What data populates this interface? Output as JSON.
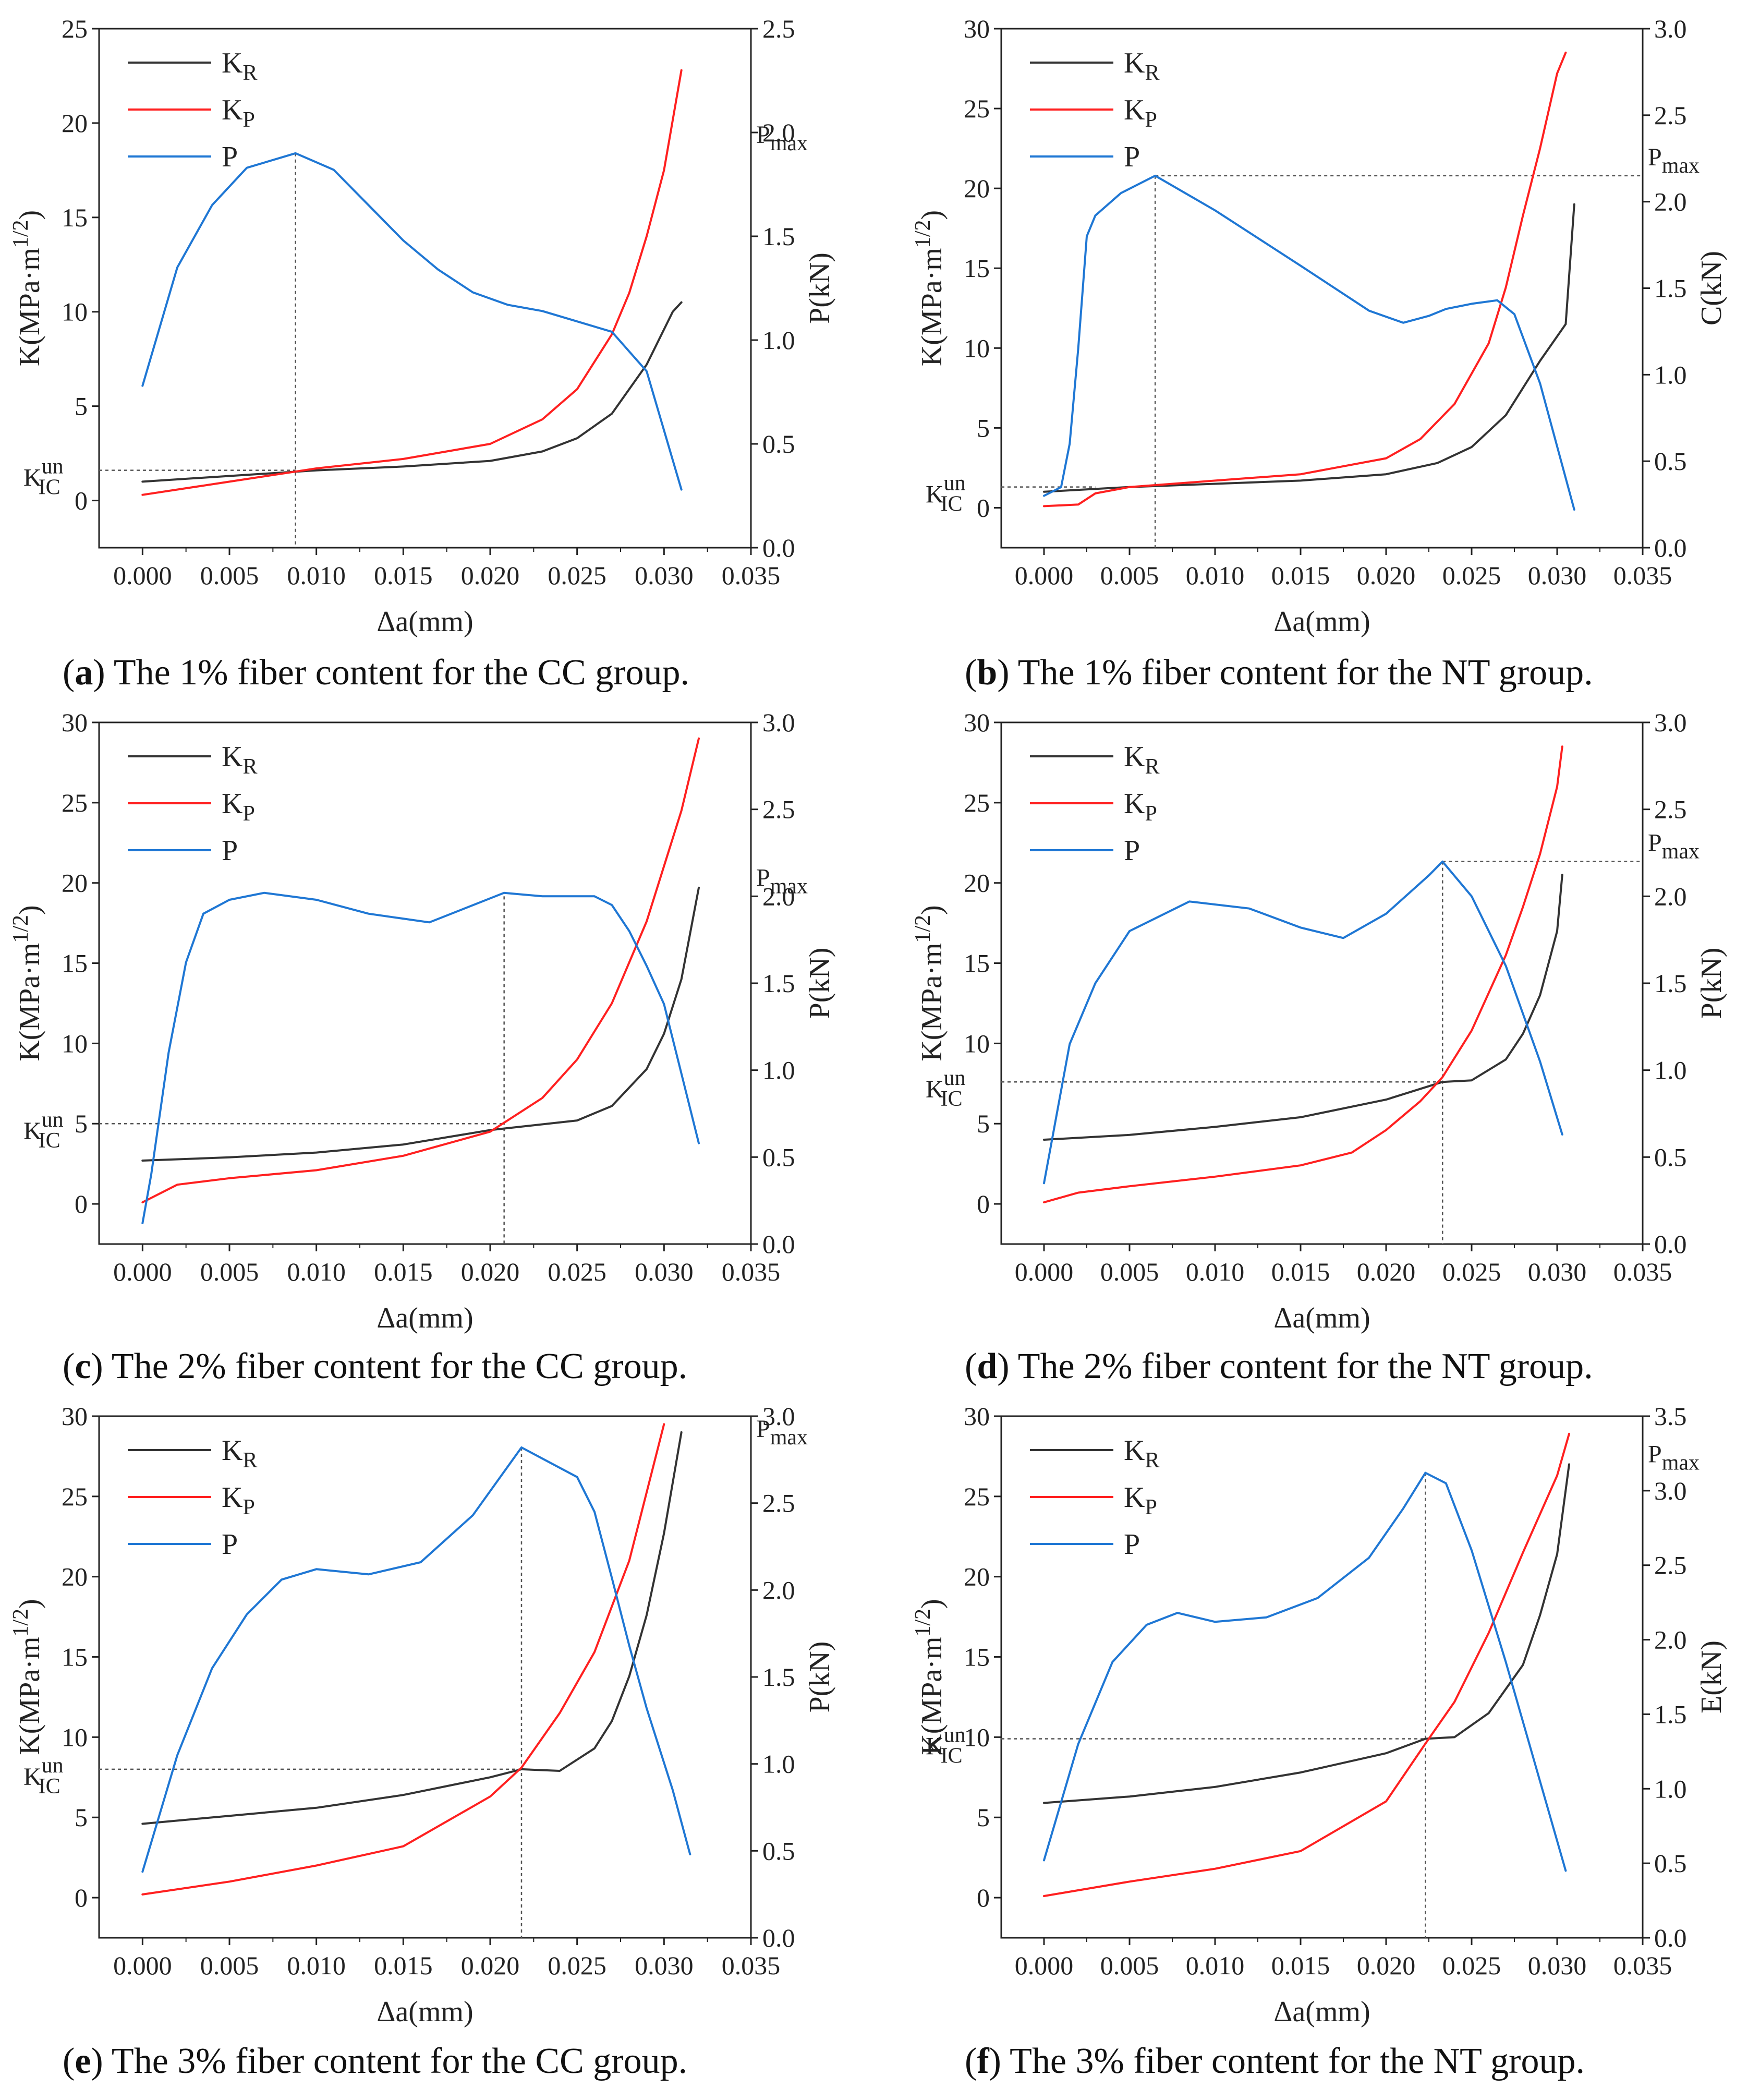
{
  "colors": {
    "KR": "#333333",
    "KP": "#ff2020",
    "P": "#1f77d4",
    "axis": "#222222",
    "guide": "#555555"
  },
  "legend": {
    "kr": "K",
    "kr_sub": "R",
    "kp": "K",
    "kp_sub": "P",
    "p": "P"
  },
  "kic_label": {
    "main": "K",
    "sub": "IC",
    "sup": "un"
  },
  "pmax_label": {
    "main": "P",
    "sub": "max"
  },
  "x_tick_labels": [
    "0.000",
    "0.005",
    "0.010",
    "0.015",
    "0.020",
    "0.025",
    "0.030",
    "0.035"
  ],
  "panels": [
    {
      "id": "a",
      "caption": {
        "letter": "a",
        "text": "The 1% fiber content for the CC group."
      },
      "chart_data": {
        "type": "line",
        "xlabel": "Δa(mm)",
        "ylabel": "K(MPa·m1/2)",
        "y2label": "P(kN)",
        "xlim": [
          -0.0025,
          0.035
        ],
        "ylim": [
          -2.5,
          25
        ],
        "y2lim": [
          0,
          2.5
        ],
        "yticks": [
          "0",
          "5",
          "10",
          "15",
          "20",
          "25"
        ],
        "y2ticks": [
          "0.0",
          "0.5",
          "1.0",
          "1.5",
          "2.0",
          "2.5"
        ],
        "kic": 1.6,
        "kic_x": 0.0088,
        "pmax_x": 0.0088,
        "pmax": 1.9,
        "pmax_line": "none",
        "series": [
          {
            "name": "KR",
            "x": [
              0,
              0.005,
              0.01,
              0.015,
              0.02,
              0.023,
              0.025,
              0.027,
              0.029,
              0.0305,
              0.031
            ],
            "y": [
              1.0,
              1.3,
              1.6,
              1.8,
              2.1,
              2.6,
              3.3,
              4.6,
              7.2,
              10.0,
              10.5
            ]
          },
          {
            "name": "KP",
            "x": [
              0,
              0.005,
              0.01,
              0.015,
              0.02,
              0.023,
              0.025,
              0.027,
              0.028,
              0.029,
              0.03,
              0.031
            ],
            "y": [
              0.3,
              1.0,
              1.7,
              2.2,
              3.0,
              4.3,
              5.9,
              8.8,
              11,
              14,
              17.5,
              22.8
            ]
          },
          {
            "name": "P",
            "x": [
              0,
              0.002,
              0.004,
              0.006,
              0.0088,
              0.011,
              0.013,
              0.015,
              0.017,
              0.019,
              0.021,
              0.023,
              0.025,
              0.027,
              0.029,
              0.031
            ],
            "y": [
              0.78,
              1.35,
              1.65,
              1.83,
              1.9,
              1.82,
              1.65,
              1.48,
              1.34,
              1.23,
              1.17,
              1.14,
              1.09,
              1.04,
              0.85,
              0.28
            ]
          }
        ]
      }
    },
    {
      "id": "b",
      "caption": {
        "letter": "b",
        "text": "The 1% fiber content for the NT group."
      },
      "chart_data": {
        "type": "line",
        "xlabel": "Δa(mm)",
        "ylabel": "K(MPa·m1/2)",
        "y2label": "C(kN)",
        "xlim": [
          -0.0025,
          0.035
        ],
        "ylim": [
          -2.5,
          30
        ],
        "y2lim": [
          0,
          3.0
        ],
        "yticks": [
          "0",
          "5",
          "10",
          "15",
          "20",
          "25",
          "30"
        ],
        "y2ticks": [
          "0.0",
          "0.5",
          "1.0",
          "1.5",
          "2.0",
          "2.5",
          "3.0"
        ],
        "kic": 1.3,
        "kic_x": 0.003,
        "pmax_x": 0.0065,
        "pmax": 2.15,
        "pmax_line": "right",
        "series": [
          {
            "name": "KR",
            "x": [
              0,
              0.005,
              0.01,
              0.015,
              0.02,
              0.023,
              0.025,
              0.027,
              0.029,
              0.0305,
              0.031
            ],
            "y": [
              1.0,
              1.3,
              1.5,
              1.7,
              2.1,
              2.8,
              3.8,
              5.8,
              9.2,
              11.5,
              19.0
            ]
          },
          {
            "name": "KP",
            "x": [
              0,
              0.002,
              0.003,
              0.005,
              0.01,
              0.015,
              0.02,
              0.022,
              0.024,
              0.026,
              0.027,
              0.028,
              0.029,
              0.03,
              0.0305
            ],
            "y": [
              0.1,
              0.2,
              0.9,
              1.3,
              1.7,
              2.1,
              3.1,
              4.3,
              6.5,
              10.3,
              13.8,
              18.3,
              22.5,
              27.2,
              28.5
            ]
          },
          {
            "name": "P",
            "x": [
              0,
              0.001,
              0.0015,
              0.002,
              0.0025,
              0.003,
              0.0045,
              0.0065,
              0.01,
              0.015,
              0.019,
              0.021,
              0.0225,
              0.0235,
              0.025,
              0.0265,
              0.0275,
              0.029,
              0.031
            ],
            "y": [
              0.3,
              0.35,
              0.6,
              1.15,
              1.8,
              1.92,
              2.05,
              2.15,
              1.95,
              1.63,
              1.37,
              1.3,
              1.34,
              1.38,
              1.41,
              1.43,
              1.35,
              0.95,
              0.22
            ]
          }
        ]
      }
    },
    {
      "id": "c",
      "caption": {
        "letter": "c",
        "text": "The 2% fiber content for the CC group."
      },
      "chart_data": {
        "type": "line",
        "xlabel": "Δa(mm)",
        "ylabel": "K(MPa·m1/2)",
        "y2label": "P(kN)",
        "xlim": [
          -0.0025,
          0.035
        ],
        "ylim": [
          -2.5,
          30
        ],
        "y2lim": [
          0,
          3.0
        ],
        "yticks": [
          "0",
          "5",
          "10",
          "15",
          "20",
          "25",
          "30"
        ],
        "y2ticks": [
          "0.0",
          "0.5",
          "1.0",
          "1.5",
          "2.0",
          "2.5",
          "3.0"
        ],
        "kic": 5.0,
        "kic_x": 0.0208,
        "pmax_x": 0.0208,
        "pmax": 2.0,
        "pmax_line": "none",
        "series": [
          {
            "name": "KR",
            "x": [
              0,
              0.005,
              0.01,
              0.015,
              0.02,
              0.025,
              0.027,
              0.029,
              0.03,
              0.031,
              0.032
            ],
            "y": [
              2.7,
              2.9,
              3.2,
              3.7,
              4.6,
              5.2,
              6.1,
              8.4,
              10.6,
              14,
              19.7
            ]
          },
          {
            "name": "KP",
            "x": [
              0,
              0.002,
              0.005,
              0.01,
              0.015,
              0.02,
              0.023,
              0.025,
              0.027,
              0.029,
              0.031,
              0.032
            ],
            "y": [
              0.1,
              1.2,
              1.6,
              2.1,
              3.0,
              4.5,
              6.6,
              9.0,
              12.5,
              17.6,
              24.5,
              29
            ]
          },
          {
            "name": "P",
            "x": [
              0,
              0.0005,
              0.0015,
              0.0025,
              0.0035,
              0.005,
              0.007,
              0.01,
              0.013,
              0.0165,
              0.0208,
              0.023,
              0.026,
              0.027,
              0.028,
              0.029,
              0.03,
              0.031,
              0.032
            ],
            "y": [
              0.12,
              0.4,
              1.1,
              1.62,
              1.9,
              1.98,
              2.02,
              1.98,
              1.9,
              1.85,
              2.02,
              2.0,
              2.0,
              1.95,
              1.8,
              1.6,
              1.38,
              0.98,
              0.58
            ]
          }
        ]
      }
    },
    {
      "id": "d",
      "caption": {
        "letter": "d",
        "text": "The 2% fiber content for the NT group."
      },
      "chart_data": {
        "type": "line",
        "xlabel": "Δa(mm)",
        "ylabel": "K(MPa·m1/2)",
        "y2label": "P(kN)",
        "xlim": [
          -0.0025,
          0.035
        ],
        "ylim": [
          -2.5,
          30
        ],
        "y2lim": [
          0,
          3.0
        ],
        "yticks": [
          "0",
          "5",
          "10",
          "15",
          "20",
          "25",
          "30"
        ],
        "y2ticks": [
          "0.0",
          "0.5",
          "1.0",
          "1.5",
          "2.0",
          "2.5",
          "3.0"
        ],
        "kic": 7.6,
        "kic_x": 0.0233,
        "pmax_x": 0.0233,
        "pmax": 2.2,
        "pmax_line": "right",
        "series": [
          {
            "name": "KR",
            "x": [
              0,
              0.005,
              0.01,
              0.015,
              0.02,
              0.0233,
              0.025,
              0.027,
              0.028,
              0.029,
              0.03,
              0.0303
            ],
            "y": [
              4.0,
              4.3,
              4.8,
              5.4,
              6.5,
              7.6,
              7.7,
              9.0,
              10.6,
              13,
              17,
              20.5
            ]
          },
          {
            "name": "KP",
            "x": [
              0,
              0.002,
              0.005,
              0.01,
              0.015,
              0.018,
              0.02,
              0.022,
              0.0233,
              0.025,
              0.027,
              0.028,
              0.029,
              0.03,
              0.0303
            ],
            "y": [
              0.1,
              0.7,
              1.1,
              1.7,
              2.4,
              3.2,
              4.6,
              6.4,
              7.9,
              10.8,
              15.5,
              18.5,
              21.8,
              26,
              28.5
            ]
          },
          {
            "name": "P",
            "x": [
              0,
              0.0015,
              0.003,
              0.005,
              0.0085,
              0.012,
              0.015,
              0.0175,
              0.02,
              0.0225,
              0.0233,
              0.025,
              0.027,
              0.029,
              0.0303
            ],
            "y": [
              0.35,
              1.15,
              1.5,
              1.8,
              1.97,
              1.93,
              1.82,
              1.76,
              1.9,
              2.12,
              2.2,
              2.0,
              1.6,
              1.05,
              0.63
            ]
          }
        ]
      }
    },
    {
      "id": "e",
      "caption": {
        "letter": "e",
        "text": "The 3% fiber content for the CC group."
      },
      "chart_data": {
        "type": "line",
        "xlabel": "Δa(mm)",
        "ylabel": "K(MPa·m1/2)",
        "y2label": "P(kN)",
        "xlim": [
          -0.0025,
          0.035
        ],
        "ylim": [
          -2.5,
          30
        ],
        "y2lim": [
          0,
          3.0
        ],
        "yticks": [
          "0",
          "5",
          "10",
          "15",
          "20",
          "25",
          "30"
        ],
        "y2ticks": [
          "0.0",
          "0.5",
          "1.0",
          "1.5",
          "2.0",
          "2.5",
          "3.0"
        ],
        "kic": 8.0,
        "kic_x": 0.0218,
        "pmax_x": 0.0218,
        "pmax": 2.82,
        "pmax_line": "none",
        "series": [
          {
            "name": "KR",
            "x": [
              0,
              0.005,
              0.01,
              0.015,
              0.02,
              0.0218,
              0.024,
              0.026,
              0.027,
              0.028,
              0.029,
              0.03,
              0.031
            ],
            "y": [
              4.6,
              5.1,
              5.6,
              6.4,
              7.5,
              8.0,
              7.9,
              9.3,
              11,
              13.8,
              17.6,
              22.7,
              29
            ]
          },
          {
            "name": "KP",
            "x": [
              0,
              0.005,
              0.01,
              0.015,
              0.02,
              0.0218,
              0.024,
              0.026,
              0.028,
              0.03
            ],
            "y": [
              0.2,
              1.0,
              2.0,
              3.2,
              6.3,
              8.1,
              11.5,
              15.3,
              21,
              29.5
            ]
          },
          {
            "name": "P",
            "x": [
              0,
              0.002,
              0.004,
              0.006,
              0.008,
              0.01,
              0.013,
              0.016,
              0.019,
              0.0218,
              0.025,
              0.026,
              0.027,
              0.028,
              0.029,
              0.0305,
              0.0315
            ],
            "y": [
              0.38,
              1.05,
              1.55,
              1.86,
              2.06,
              2.12,
              2.09,
              2.16,
              2.43,
              2.82,
              2.65,
              2.45,
              2.07,
              1.68,
              1.32,
              0.85,
              0.48
            ]
          }
        ]
      }
    },
    {
      "id": "f",
      "caption": {
        "letter": "f",
        "text": "The 3% fiber content for the NT group."
      },
      "chart_data": {
        "type": "line",
        "xlabel": "Δa(mm)",
        "ylabel": "K(MPa·m1/2)",
        "y2label": "E(kN)",
        "xlim": [
          -0.0025,
          0.035
        ],
        "ylim": [
          -2.5,
          30
        ],
        "y2lim": [
          0,
          3.5
        ],
        "yticks": [
          "0",
          "5",
          "10",
          "15",
          "20",
          "25",
          "30"
        ],
        "y2ticks": [
          "0.0",
          "0.5",
          "1.0",
          "1.5",
          "2.0",
          "2.5",
          "3.0",
          "3.5"
        ],
        "kic": 9.9,
        "kic_x": 0.0223,
        "pmax_x": 0.0223,
        "pmax": 3.12,
        "pmax_line": "none",
        "series": [
          {
            "name": "KR",
            "x": [
              0,
              0.005,
              0.01,
              0.015,
              0.02,
              0.0223,
              0.024,
              0.026,
              0.028,
              0.029,
              0.03,
              0.0307
            ],
            "y": [
              5.9,
              6.3,
              6.9,
              7.8,
              9.0,
              9.9,
              10.0,
              11.5,
              14.5,
              17.6,
              21.4,
              27.0
            ]
          },
          {
            "name": "KP",
            "x": [
              0,
              0.005,
              0.01,
              0.015,
              0.02,
              0.0223,
              0.024,
              0.026,
              0.028,
              0.03,
              0.0307
            ],
            "y": [
              0.1,
              1.0,
              1.8,
              2.9,
              6.0,
              9.6,
              12.2,
              16.5,
              21.5,
              26.3,
              28.9
            ]
          },
          {
            "name": "P",
            "x": [
              0,
              0.002,
              0.004,
              0.006,
              0.0078,
              0.01,
              0.013,
              0.016,
              0.019,
              0.021,
              0.0223,
              0.0235,
              0.025,
              0.027,
              0.029,
              0.0305
            ],
            "y": [
              0.52,
              1.3,
              1.85,
              2.1,
              2.18,
              2.12,
              2.15,
              2.28,
              2.55,
              2.88,
              3.12,
              3.05,
              2.6,
              1.85,
              1.05,
              0.45
            ]
          }
        ]
      }
    }
  ]
}
